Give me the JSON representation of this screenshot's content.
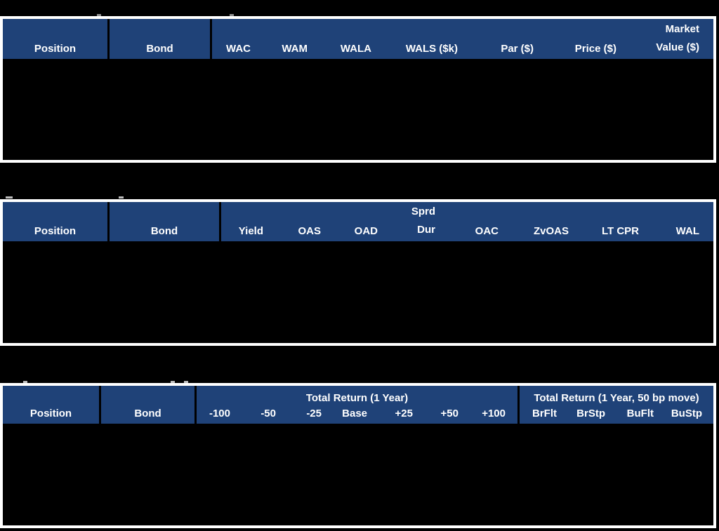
{
  "colors": {
    "page_bg": "#000000",
    "header_bg": "#1f4278",
    "header_text": "#ffffff",
    "table_border": "#ffffff",
    "column_separator": "#000000",
    "body_redacted": "#000000"
  },
  "table1": {
    "position": "Position",
    "bond": "Bond",
    "metrics": [
      "WAC",
      "WAM",
      "WALA",
      "WALS ($k)",
      "Par ($)",
      "Price ($)"
    ],
    "market_value": {
      "line1": "Market",
      "line2": "Value ($)"
    }
  },
  "table2": {
    "position": "Position",
    "bond": "Bond",
    "metrics_before": [
      "Yield",
      "OAS",
      "OAD"
    ],
    "sprd_dur": {
      "line1": "Sprd",
      "line2": "Dur"
    },
    "metrics_after": [
      "OAC",
      "ZvOAS",
      "LT CPR",
      "WAL"
    ]
  },
  "table3": {
    "position": "Position",
    "bond": "Bond",
    "group1": {
      "title": "Total Return (1 Year)",
      "cols": [
        "-100",
        "-50",
        "-25",
        "Base",
        "+25",
        "+50",
        "+100"
      ]
    },
    "group2": {
      "title": "Total Return (1 Year, 50 bp move)",
      "cols": [
        "BrFlt",
        "BrStp",
        "BuFlt",
        "BuStp"
      ]
    }
  }
}
